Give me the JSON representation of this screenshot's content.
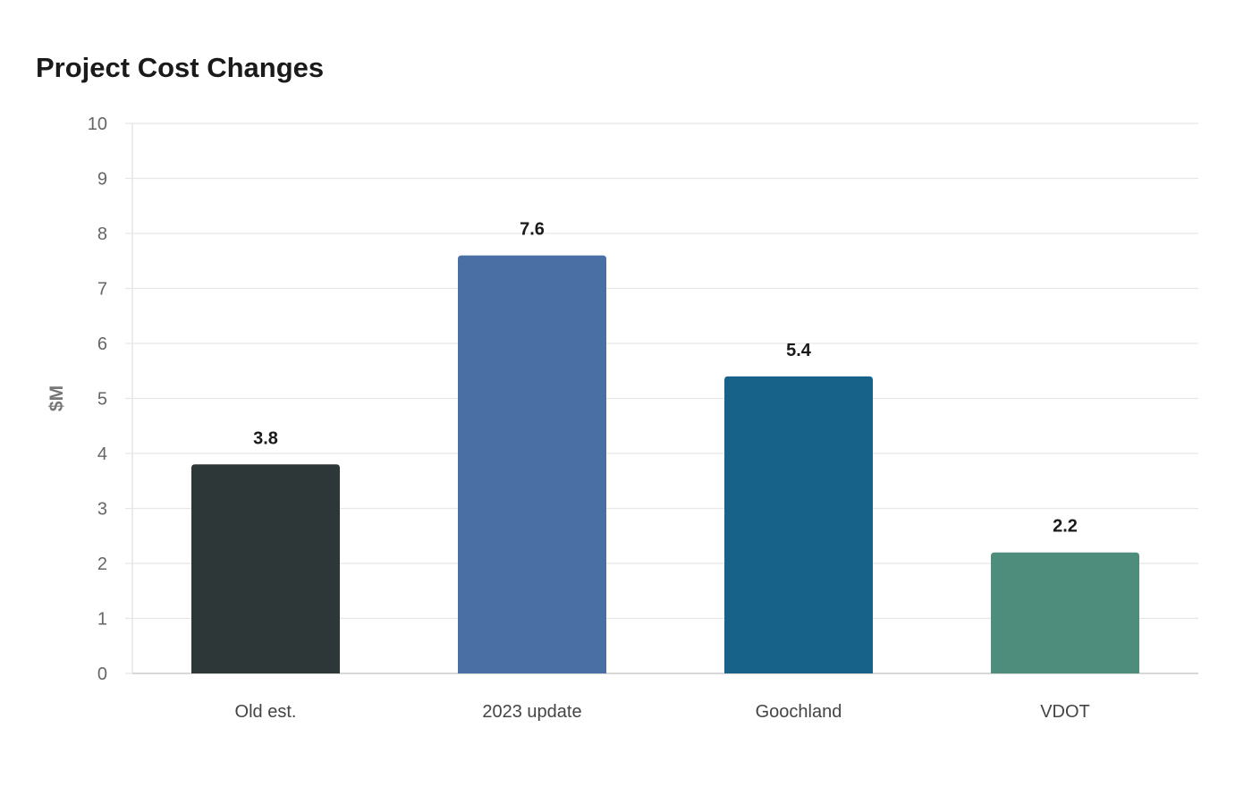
{
  "chart_data": {
    "type": "bar",
    "title": "Project Cost Changes",
    "xlabel": "",
    "ylabel": "$M",
    "ylim": [
      0,
      10
    ],
    "yticks": [
      0,
      1,
      2,
      3,
      4,
      5,
      6,
      7,
      8,
      9,
      10
    ],
    "categories": [
      "Old est.",
      "2023 update",
      "Goochland",
      "VDOT"
    ],
    "values": [
      3.8,
      7.6,
      5.4,
      2.2
    ],
    "data_labels": [
      "3.8",
      "7.6",
      "5.4",
      "2.2"
    ],
    "colors": [
      "#2e3737",
      "#4a6fa5",
      "#176289",
      "#4e8d7b"
    ],
    "grid": true,
    "legend": "none"
  }
}
